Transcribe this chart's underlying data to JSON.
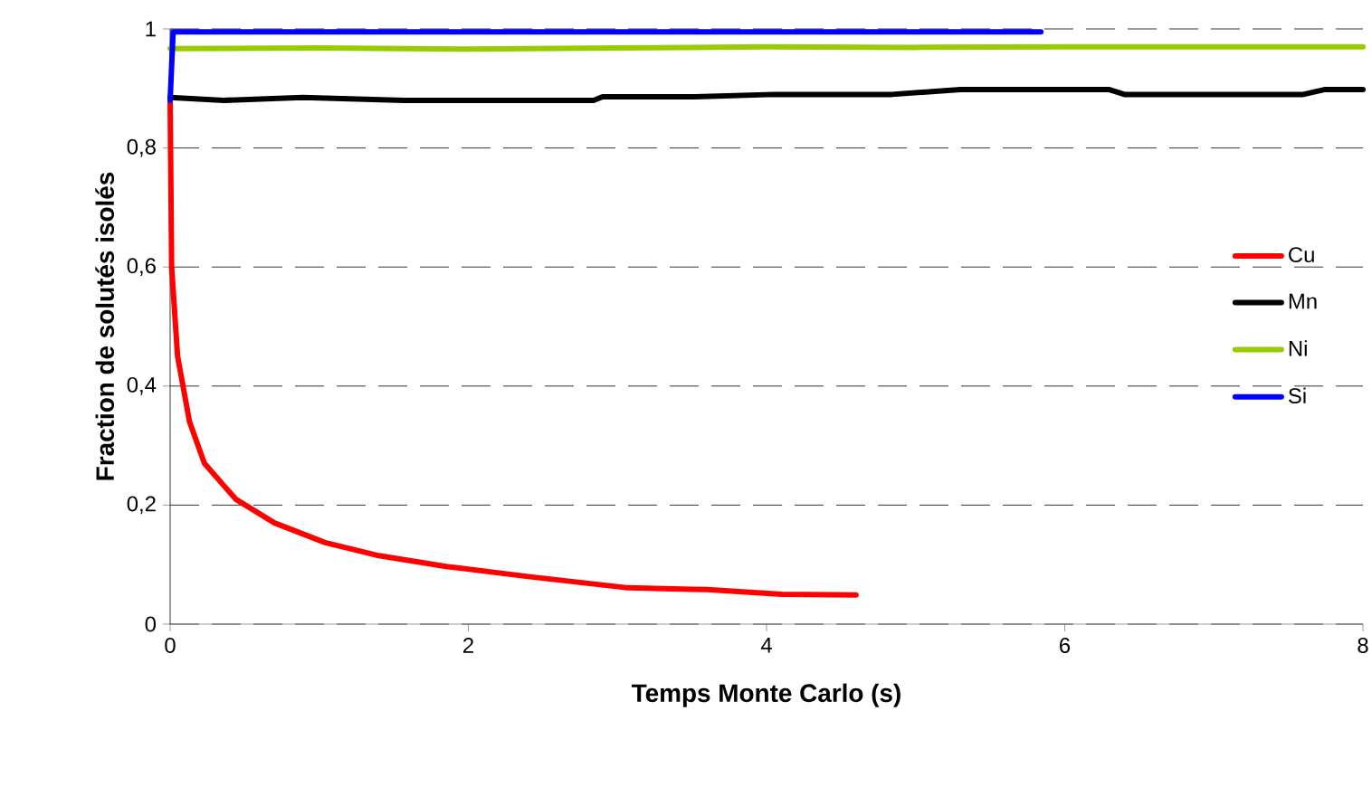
{
  "chart_data": {
    "type": "line",
    "xlabel": "Temps Monte Carlo (s)",
    "ylabel": "Fraction de solutés isolés",
    "xlim": [
      0,
      8
    ],
    "ylim": [
      0,
      1
    ],
    "xticks": [
      0,
      2,
      4,
      6,
      8
    ],
    "yticks": [
      0,
      {
        "value": 0.2,
        "label": "0,2"
      },
      {
        "value": 0.4,
        "label": "0,4"
      },
      {
        "value": 0.6,
        "label": "0,6"
      },
      {
        "value": 0.8,
        "label": "0,8"
      },
      1
    ],
    "grid": "y",
    "legend": "right",
    "marker": "none",
    "line_style": "solid",
    "series": [
      {
        "name": "Cu",
        "color": "#ff0000",
        "x": [
          0,
          0.01,
          0.05,
          0.13,
          0.23,
          0.44,
          0.7,
          1.04,
          1.4,
          1.85,
          2.4,
          3.07,
          3.6,
          4.1,
          4.6
        ],
        "values": [
          0.88,
          0.6,
          0.45,
          0.34,
          0.27,
          0.21,
          0.17,
          0.137,
          0.115,
          0.097,
          0.08,
          0.061,
          0.058,
          0.05,
          0.049
        ]
      },
      {
        "name": "Mn",
        "color": "#000000",
        "x": [
          0,
          0.36,
          0.89,
          1.57,
          2.84,
          2.9,
          3.52,
          4.05,
          4.84,
          5.3,
          6.3,
          6.4,
          7.6,
          7.74,
          8
        ],
        "values": [
          0.885,
          0.88,
          0.885,
          0.88,
          0.88,
          0.886,
          0.886,
          0.89,
          0.89,
          0.898,
          0.898,
          0.89,
          0.89,
          0.898,
          0.898
        ]
      },
      {
        "name": "Ni",
        "color": "#99cc00",
        "x": [
          0,
          1,
          2,
          3,
          4,
          5,
          6,
          7,
          8
        ],
        "values": [
          0.967,
          0.968,
          0.966,
          0.968,
          0.97,
          0.969,
          0.97,
          0.97,
          0.97
        ]
      },
      {
        "name": "Si",
        "color": "#0000ff",
        "x": [
          0,
          0.02,
          1,
          2,
          3,
          4,
          5,
          5.84
        ],
        "values": [
          0.88,
          0.995,
          0.995,
          0.995,
          0.995,
          0.995,
          0.995,
          0.995
        ]
      }
    ]
  }
}
